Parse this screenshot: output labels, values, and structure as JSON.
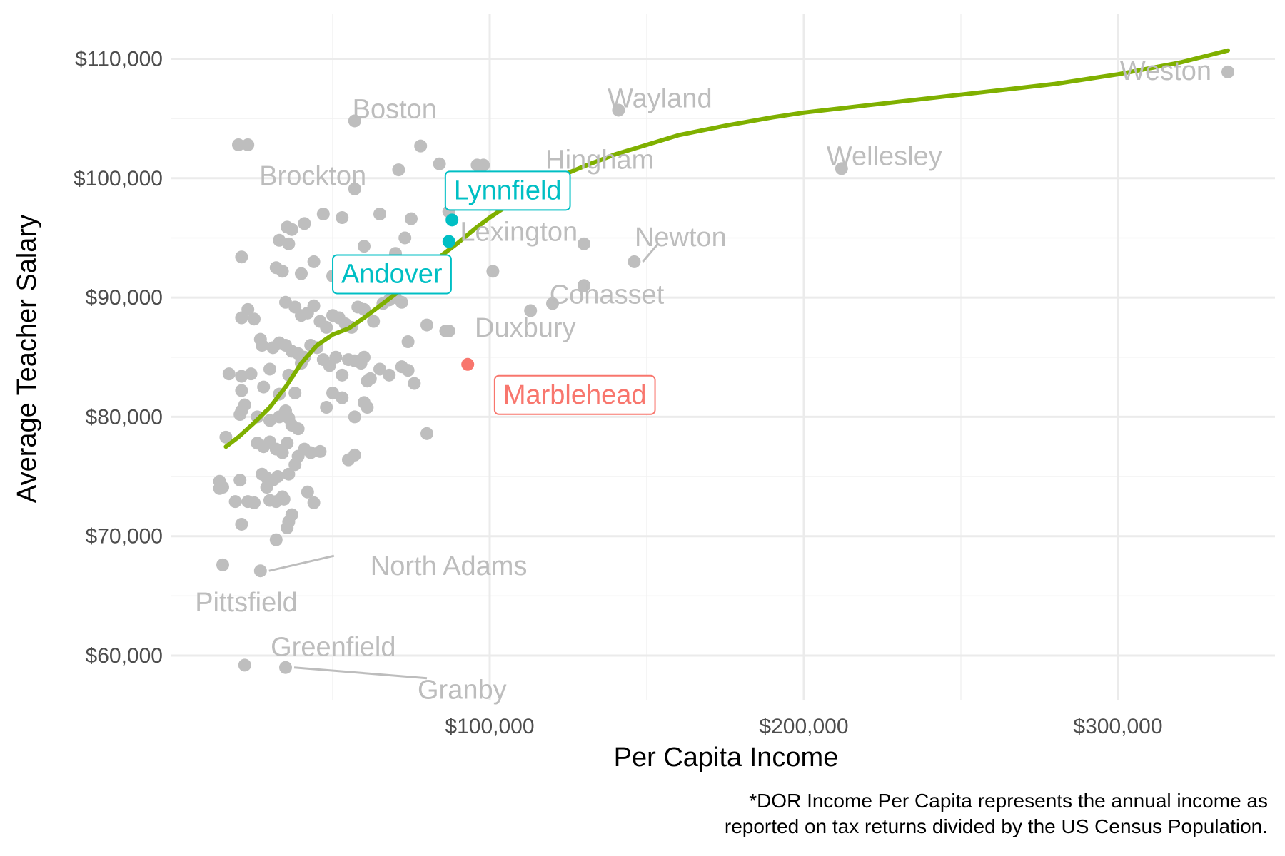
{
  "chart_data": {
    "type": "scatter",
    "title": "",
    "xlabel": "Per Capita Income",
    "ylabel": "Average Teacher Salary",
    "xlim": [
      0,
      340000
    ],
    "ylim": [
      57000,
      111500
    ],
    "x_ticks": [
      100000,
      200000,
      300000
    ],
    "x_tick_labels": [
      "$100,000",
      "$200,000",
      "$300,000"
    ],
    "y_ticks": [
      60000,
      70000,
      80000,
      90000,
      100000,
      110000
    ],
    "y_tick_labels": [
      "$60,000",
      "$70,000",
      "$80,000",
      "$90,000",
      "$100,000",
      "$110,000"
    ],
    "grid": true,
    "legend": "none",
    "caption": [
      "*DOR Income Per Capita represents the annual income as",
      "reported on tax returns divided by the US Census Population."
    ],
    "colors": {
      "points": "#bebebe",
      "trend": "#7fb000",
      "highlight_teal": "#00bfc4",
      "highlight_red": "#f8766d",
      "label_gray": "#bdbdbd"
    },
    "labeled_points": [
      {
        "name": "Weston",
        "x": 335000,
        "y": 108900,
        "style": "gray"
      },
      {
        "name": "Wayland",
        "x": 141000,
        "y": 105700,
        "style": "gray"
      },
      {
        "name": "Boston",
        "x": 57000,
        "y": 104800,
        "style": "gray"
      },
      {
        "name": "Wellesley",
        "x": 212000,
        "y": 100800,
        "style": "gray"
      },
      {
        "name": "Brockton",
        "x": 23000,
        "y": 102800,
        "style": "gray"
      },
      {
        "name": "Hingham",
        "x": 98000,
        "y": 101100,
        "style": "gray"
      },
      {
        "name": "Lexington",
        "x": 87000,
        "y": 97200,
        "style": "gray"
      },
      {
        "name": "Newton",
        "x": 146000,
        "y": 93000,
        "style": "gray",
        "leader": true
      },
      {
        "name": "Cohasset",
        "x": 130000,
        "y": 91000,
        "style": "gray"
      },
      {
        "name": "Duxbury",
        "x": 87000,
        "y": 87200,
        "style": "gray"
      },
      {
        "name": "North Adams",
        "x": 27000,
        "y": 67100,
        "style": "gray",
        "leader": true
      },
      {
        "name": "Pittsfield",
        "x": 15000,
        "y": 67600,
        "style": "gray"
      },
      {
        "name": "Greenfield",
        "x": 22000,
        "y": 59200,
        "style": "gray"
      },
      {
        "name": "Granby",
        "x": 35000,
        "y": 59000,
        "style": "gray",
        "leader": true
      },
      {
        "name": "Lynnfield",
        "x": 88000,
        "y": 96500,
        "style": "teal"
      },
      {
        "name": "Andover",
        "x": 87000,
        "y": 94700,
        "style": "teal"
      },
      {
        "name": "Marblehead",
        "x": 93000,
        "y": 84400,
        "style": "red"
      }
    ],
    "points": [
      [
        20000,
        102800
      ],
      [
        21000,
        93400
      ],
      [
        23000,
        89000
      ],
      [
        25000,
        88200
      ],
      [
        21000,
        88300
      ],
      [
        17000,
        83600
      ],
      [
        21000,
        83400
      ],
      [
        24000,
        83600
      ],
      [
        27000,
        86500
      ],
      [
        27500,
        86000
      ],
      [
        28000,
        82500
      ],
      [
        21000,
        82200
      ],
      [
        22000,
        81000
      ],
      [
        21000,
        80500
      ],
      [
        20500,
        80200
      ],
      [
        16000,
        78300
      ],
      [
        14000,
        74600
      ],
      [
        15000,
        74100
      ],
      [
        14000,
        74000
      ],
      [
        20500,
        74700
      ],
      [
        19000,
        72900
      ],
      [
        23000,
        72900
      ],
      [
        25000,
        72800
      ],
      [
        21000,
        71000
      ],
      [
        26000,
        77800
      ],
      [
        28000,
        77500
      ],
      [
        30000,
        77900
      ],
      [
        32000,
        77300
      ],
      [
        34000,
        77000
      ],
      [
        35500,
        77800
      ],
      [
        27500,
        75200
      ],
      [
        29000,
        74900
      ],
      [
        31000,
        74700
      ],
      [
        32500,
        75000
      ],
      [
        29000,
        74100
      ],
      [
        30000,
        73000
      ],
      [
        32000,
        72900
      ],
      [
        34000,
        73300
      ],
      [
        34500,
        73100
      ],
      [
        36000,
        71200
      ],
      [
        35500,
        70700
      ],
      [
        37000,
        71800
      ],
      [
        32000,
        69700
      ],
      [
        30000,
        79700
      ],
      [
        33000,
        80000
      ],
      [
        35000,
        80500
      ],
      [
        36000,
        79900
      ],
      [
        37000,
        79300
      ],
      [
        39000,
        79000
      ],
      [
        33000,
        81900
      ],
      [
        36000,
        83500
      ],
      [
        38000,
        82000
      ],
      [
        40000,
        84500
      ],
      [
        31000,
        85800
      ],
      [
        33000,
        86200
      ],
      [
        35000,
        86000
      ],
      [
        37000,
        85500
      ],
      [
        39000,
        85300
      ],
      [
        41000,
        85000
      ],
      [
        43000,
        86000
      ],
      [
        45000,
        85800
      ],
      [
        47000,
        84800
      ],
      [
        49000,
        84300
      ],
      [
        51000,
        85000
      ],
      [
        53000,
        83500
      ],
      [
        55000,
        84800
      ],
      [
        57000,
        84700
      ],
      [
        59000,
        84500
      ],
      [
        61000,
        83000
      ],
      [
        60000,
        85000
      ],
      [
        46000,
        88000
      ],
      [
        48000,
        87500
      ],
      [
        50000,
        88500
      ],
      [
        52000,
        88300
      ],
      [
        54000,
        87800
      ],
      [
        56000,
        87500
      ],
      [
        58000,
        89200
      ],
      [
        60000,
        89000
      ],
      [
        63000,
        88000
      ],
      [
        66000,
        89500
      ],
      [
        68000,
        89800
      ],
      [
        70000,
        90000
      ],
      [
        72000,
        89600
      ],
      [
        74000,
        86300
      ],
      [
        80000,
        87700
      ],
      [
        86000,
        87200
      ],
      [
        44000,
        89300
      ],
      [
        42000,
        88700
      ],
      [
        40000,
        88500
      ],
      [
        38000,
        89200
      ],
      [
        35000,
        89600
      ],
      [
        34000,
        92200
      ],
      [
        32000,
        92500
      ],
      [
        33000,
        94800
      ],
      [
        36000,
        94500
      ],
      [
        37000,
        95700
      ],
      [
        35500,
        95900
      ],
      [
        41000,
        96200
      ],
      [
        47000,
        97000
      ],
      [
        53000,
        96700
      ],
      [
        57000,
        99100
      ],
      [
        60000,
        94300
      ],
      [
        65000,
        97000
      ],
      [
        70000,
        93700
      ],
      [
        73000,
        95000
      ],
      [
        75000,
        96600
      ],
      [
        71000,
        100700
      ],
      [
        78000,
        102700
      ],
      [
        84000,
        101200
      ],
      [
        87000,
        97200
      ],
      [
        96000,
        101100
      ],
      [
        101000,
        92200
      ],
      [
        113000,
        88900
      ],
      [
        120000,
        89500
      ],
      [
        130000,
        91000
      ],
      [
        130000,
        94500
      ],
      [
        60000,
        81200
      ],
      [
        61000,
        80800
      ],
      [
        57000,
        80000
      ],
      [
        53000,
        81600
      ],
      [
        50000,
        82000
      ],
      [
        48000,
        80800
      ],
      [
        46000,
        77100
      ],
      [
        43000,
        77000
      ],
      [
        41000,
        77300
      ],
      [
        39000,
        76700
      ],
      [
        44000,
        72800
      ],
      [
        42000,
        73700
      ],
      [
        55000,
        76400
      ],
      [
        57000,
        76800
      ],
      [
        62000,
        83200
      ],
      [
        65000,
        84000
      ],
      [
        68000,
        83500
      ],
      [
        72000,
        84200
      ],
      [
        74000,
        83900
      ],
      [
        76000,
        82800
      ],
      [
        80000,
        78600
      ],
      [
        38000,
        76000
      ],
      [
        36000,
        75200
      ],
      [
        40000,
        92000
      ],
      [
        44000,
        93000
      ],
      [
        50000,
        91800
      ],
      [
        55000,
        92500
      ],
      [
        62000,
        91500
      ],
      [
        66000,
        92000
      ],
      [
        30000,
        84000
      ],
      [
        26000,
        80000
      ]
    ],
    "trend": [
      [
        16000,
        77500
      ],
      [
        20000,
        78300
      ],
      [
        25000,
        79500
      ],
      [
        30000,
        80800
      ],
      [
        35000,
        82500
      ],
      [
        40000,
        84500
      ],
      [
        45000,
        86000
      ],
      [
        50000,
        86900
      ],
      [
        55000,
        87400
      ],
      [
        60000,
        88300
      ],
      [
        65000,
        89300
      ],
      [
        70000,
        90300
      ],
      [
        75000,
        91300
      ],
      [
        80000,
        92500
      ],
      [
        85000,
        93600
      ],
      [
        90000,
        94600
      ],
      [
        95000,
        95700
      ],
      [
        100000,
        96700
      ],
      [
        110000,
        98500
      ],
      [
        120000,
        99900
      ],
      [
        130000,
        101000
      ],
      [
        140000,
        102000
      ],
      [
        150000,
        102800
      ],
      [
        160000,
        103600
      ],
      [
        175000,
        104400
      ],
      [
        190000,
        105100
      ],
      [
        200000,
        105500
      ],
      [
        220000,
        106100
      ],
      [
        240000,
        106700
      ],
      [
        260000,
        107300
      ],
      [
        280000,
        107900
      ],
      [
        300000,
        108700
      ],
      [
        320000,
        109700
      ],
      [
        335000,
        110700
      ]
    ]
  }
}
